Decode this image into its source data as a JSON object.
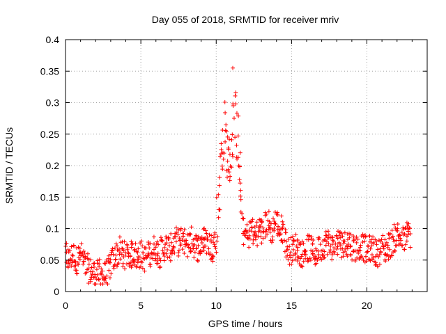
{
  "chart_data": {
    "type": "scatter",
    "title": "Day 055 of 2018, SRMTID for receiver mriv",
    "xlabel": "GPS time / hours",
    "ylabel": "SRMTID / TECUs",
    "xlim": [
      0,
      24
    ],
    "ylim": [
      0,
      0.4
    ],
    "x_ticks": [
      0,
      5,
      10,
      15,
      20
    ],
    "x_tick_labels": [
      "0",
      "5",
      "10",
      "15",
      "20"
    ],
    "y_ticks": [
      0,
      0.05,
      0.1,
      0.15,
      0.2,
      0.25,
      0.3,
      0.35,
      0.4
    ],
    "y_tick_labels": [
      "0",
      "0.05",
      "0.1",
      "0.15",
      "0.2",
      "0.25",
      "0.3",
      "0.35",
      "0.4"
    ],
    "grid": true,
    "marker": "+",
    "color": "#ff0000",
    "series": [
      {
        "name": "SRMTID",
        "x_start": 0.0,
        "x_end": 22.8,
        "x_step": 0.1,
        "baseline_values": [
          0.055,
          0.052,
          0.05,
          0.055,
          0.058,
          0.057,
          0.052,
          0.05,
          0.055,
          0.06,
          0.056,
          0.048,
          0.045,
          0.04,
          0.038,
          0.035,
          0.032,
          0.03,
          0.03,
          0.028,
          0.026,
          0.028,
          0.03,
          0.028,
          0.027,
          0.026,
          0.025,
          0.03,
          0.035,
          0.04,
          0.045,
          0.05,
          0.055,
          0.058,
          0.06,
          0.062,
          0.065,
          0.06,
          0.055,
          0.058,
          0.06,
          0.062,
          0.06,
          0.058,
          0.06,
          0.062,
          0.058,
          0.055,
          0.056,
          0.058,
          0.06,
          0.055,
          0.053,
          0.055,
          0.058,
          0.06,
          0.062,
          0.065,
          0.068,
          0.07,
          0.065,
          0.062,
          0.06,
          0.065,
          0.068,
          0.07,
          0.072,
          0.07,
          0.068,
          0.07,
          0.072,
          0.075,
          0.078,
          0.08,
          0.078,
          0.075,
          0.08,
          0.082,
          0.08,
          0.078,
          0.075,
          0.078,
          0.08,
          0.082,
          0.078,
          0.075,
          0.072,
          0.07,
          0.072,
          0.075,
          0.078,
          0.08,
          0.082,
          0.08,
          0.078,
          0.075,
          0.072,
          0.07,
          0.075,
          0.08,
          0.11,
          0.14,
          0.175,
          0.21,
          0.24,
          0.255,
          0.24,
          0.215,
          0.2,
          0.215,
          0.24,
          0.26,
          0.27,
          0.255,
          0.235,
          0.19,
          0.14,
          0.11,
          0.095,
          0.09,
          0.088,
          0.09,
          0.095,
          0.1,
          0.095,
          0.09,
          0.092,
          0.095,
          0.1,
          0.098,
          0.095,
          0.1,
          0.105,
          0.11,
          0.108,
          0.1,
          0.098,
          0.1,
          0.105,
          0.11,
          0.108,
          0.102,
          0.098,
          0.1,
          0.095,
          0.085,
          0.075,
          0.068,
          0.065,
          0.065,
          0.068,
          0.07,
          0.072,
          0.07,
          0.068,
          0.065,
          0.062,
          0.06,
          0.062,
          0.065,
          0.068,
          0.07,
          0.068,
          0.065,
          0.062,
          0.06,
          0.062,
          0.065,
          0.068,
          0.07,
          0.072,
          0.075,
          0.078,
          0.08,
          0.078,
          0.075,
          0.072,
          0.07,
          0.072,
          0.075,
          0.078,
          0.08,
          0.078,
          0.075,
          0.072,
          0.075,
          0.078,
          0.08,
          0.078,
          0.075,
          0.072,
          0.07,
          0.068,
          0.07,
          0.072,
          0.075,
          0.072,
          0.07,
          0.068,
          0.065,
          0.065,
          0.068,
          0.07,
          0.068,
          0.065,
          0.062,
          0.06,
          0.062,
          0.065,
          0.068,
          0.07,
          0.068,
          0.065,
          0.068,
          0.072,
          0.075,
          0.078,
          0.08,
          0.085,
          0.088,
          0.09,
          0.088,
          0.085,
          0.082,
          0.08,
          0.085,
          0.09,
          0.092,
          0.09
        ],
        "spread": 0.022,
        "peak_value": 0.355,
        "peak_x": 11.1,
        "points_per_step": 4
      }
    ]
  }
}
